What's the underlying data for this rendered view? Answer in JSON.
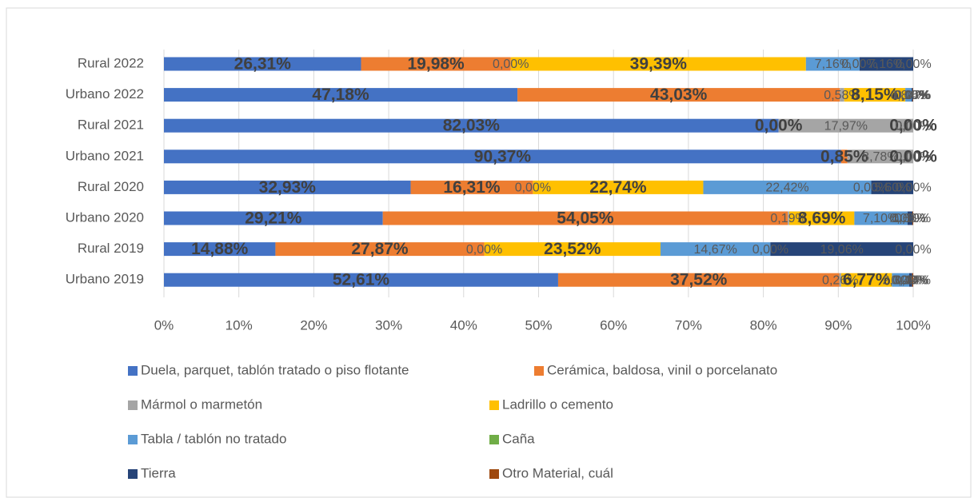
{
  "chart_data": {
    "type": "stacked-bar-horizontal-100",
    "categories": [
      "Rural 2022",
      "Urbano 2022",
      "Rural 2021",
      "Urbano 2021",
      "Rural 2020",
      "Urbano 2020",
      "Rural 2019",
      "Urbano 2019"
    ],
    "series": [
      {
        "name": "Duela, parquet, tablón tratado o piso flotante",
        "color": "#4472c4",
        "values": [
          26.31,
          47.18,
          82.03,
          90.37,
          32.93,
          29.21,
          14.88,
          52.61
        ],
        "value_labels": [
          "26,31%",
          "47,18%",
          "82,03%",
          "90,37%",
          "32,93%",
          "29,21%",
          "14,88%",
          "52,61%"
        ]
      },
      {
        "name": "Cerámica, baldosa, vinil o porcelanato",
        "color": "#ed7d31",
        "values": [
          19.98,
          43.03,
          0.0,
          0.85,
          16.31,
          54.05,
          27.87,
          37.52
        ],
        "value_labels": [
          "19,98%",
          "43,03%",
          "0,00%",
          "0,85%",
          "16,31%",
          "54,05%",
          "27,87%",
          "37,52%"
        ]
      },
      {
        "name": "Mármol o marmetón",
        "color": "#a5a5a5",
        "values": [
          0.0,
          0.58,
          17.97,
          8.78,
          0.0,
          0.19,
          0.0,
          0.26
        ],
        "value_labels": [
          "0,00%",
          "0,58%",
          "17,97%",
          "8,78%",
          "0,00%",
          "0,19%",
          "0,00%",
          "0,26%"
        ]
      },
      {
        "name": "Ladrillo o cemento",
        "color": "#ffc000",
        "values": [
          39.39,
          8.15,
          0.0,
          0.0,
          22.74,
          8.69,
          23.52,
          6.77
        ],
        "value_labels": [
          "39,39%",
          "8,15%",
          "0,00%",
          "0,00%",
          "22,74%",
          "8,69%",
          "23,52%",
          "6,77%"
        ]
      },
      {
        "name": "Tabla / tablón no tratado",
        "color": "#5b9bd5",
        "values": [
          7.16,
          0.84,
          0.0,
          0.0,
          22.42,
          7.1,
          14.67,
          2.3
        ],
        "value_labels": [
          "7,16%",
          "0,84%",
          "0,00%",
          "0,00%",
          "22,42%",
          "7,10%",
          "14,67%",
          "2,30%"
        ]
      },
      {
        "name": "Caña",
        "color": "#70ad47",
        "values": [
          0.0,
          0.0,
          0.0,
          0.0,
          0.0,
          0.0,
          0.0,
          0.0
        ],
        "value_labels": [
          "0,00%",
          "0,00%",
          "0,00%",
          "0,00%",
          "0,00%",
          "0,00%",
          "0,00%",
          "0,00%"
        ]
      },
      {
        "name": "Tierra",
        "color": "#264478",
        "values": [
          7.16,
          0.15,
          0.0,
          0.0,
          5.6,
          0.66,
          19.06,
          0.4
        ],
        "value_labels": [
          "7,16%",
          "0,15%",
          "0,00%",
          "0,00%",
          "5,60%",
          "0,66%",
          "19,06%",
          "0,40%"
        ]
      },
      {
        "name": "Otro Material, cuál",
        "color": "#9e480e",
        "values": [
          0.0,
          0.07,
          0.0,
          0.0,
          0.0,
          0.1,
          0.0,
          0.14
        ],
        "value_labels": [
          "0,00%",
          "0,07%",
          "0,00%",
          "0,00%",
          "0,00%",
          "0,10%",
          "0,00%",
          "0,14%"
        ]
      }
    ],
    "xlim": [
      0,
      100
    ],
    "xticks": [
      {
        "value": 0,
        "label": "0%"
      },
      {
        "value": 10,
        "label": "10%"
      },
      {
        "value": 20,
        "label": "20%"
      },
      {
        "value": 30,
        "label": "30%"
      },
      {
        "value": 40,
        "label": "40%"
      },
      {
        "value": 50,
        "label": "50%"
      },
      {
        "value": 60,
        "label": "60%"
      },
      {
        "value": 70,
        "label": "70%"
      },
      {
        "value": 80,
        "label": "80%"
      },
      {
        "value": 90,
        "label": "90%"
      },
      {
        "value": 100,
        "label": "100%"
      }
    ],
    "grid": true,
    "legend": "bottom"
  }
}
